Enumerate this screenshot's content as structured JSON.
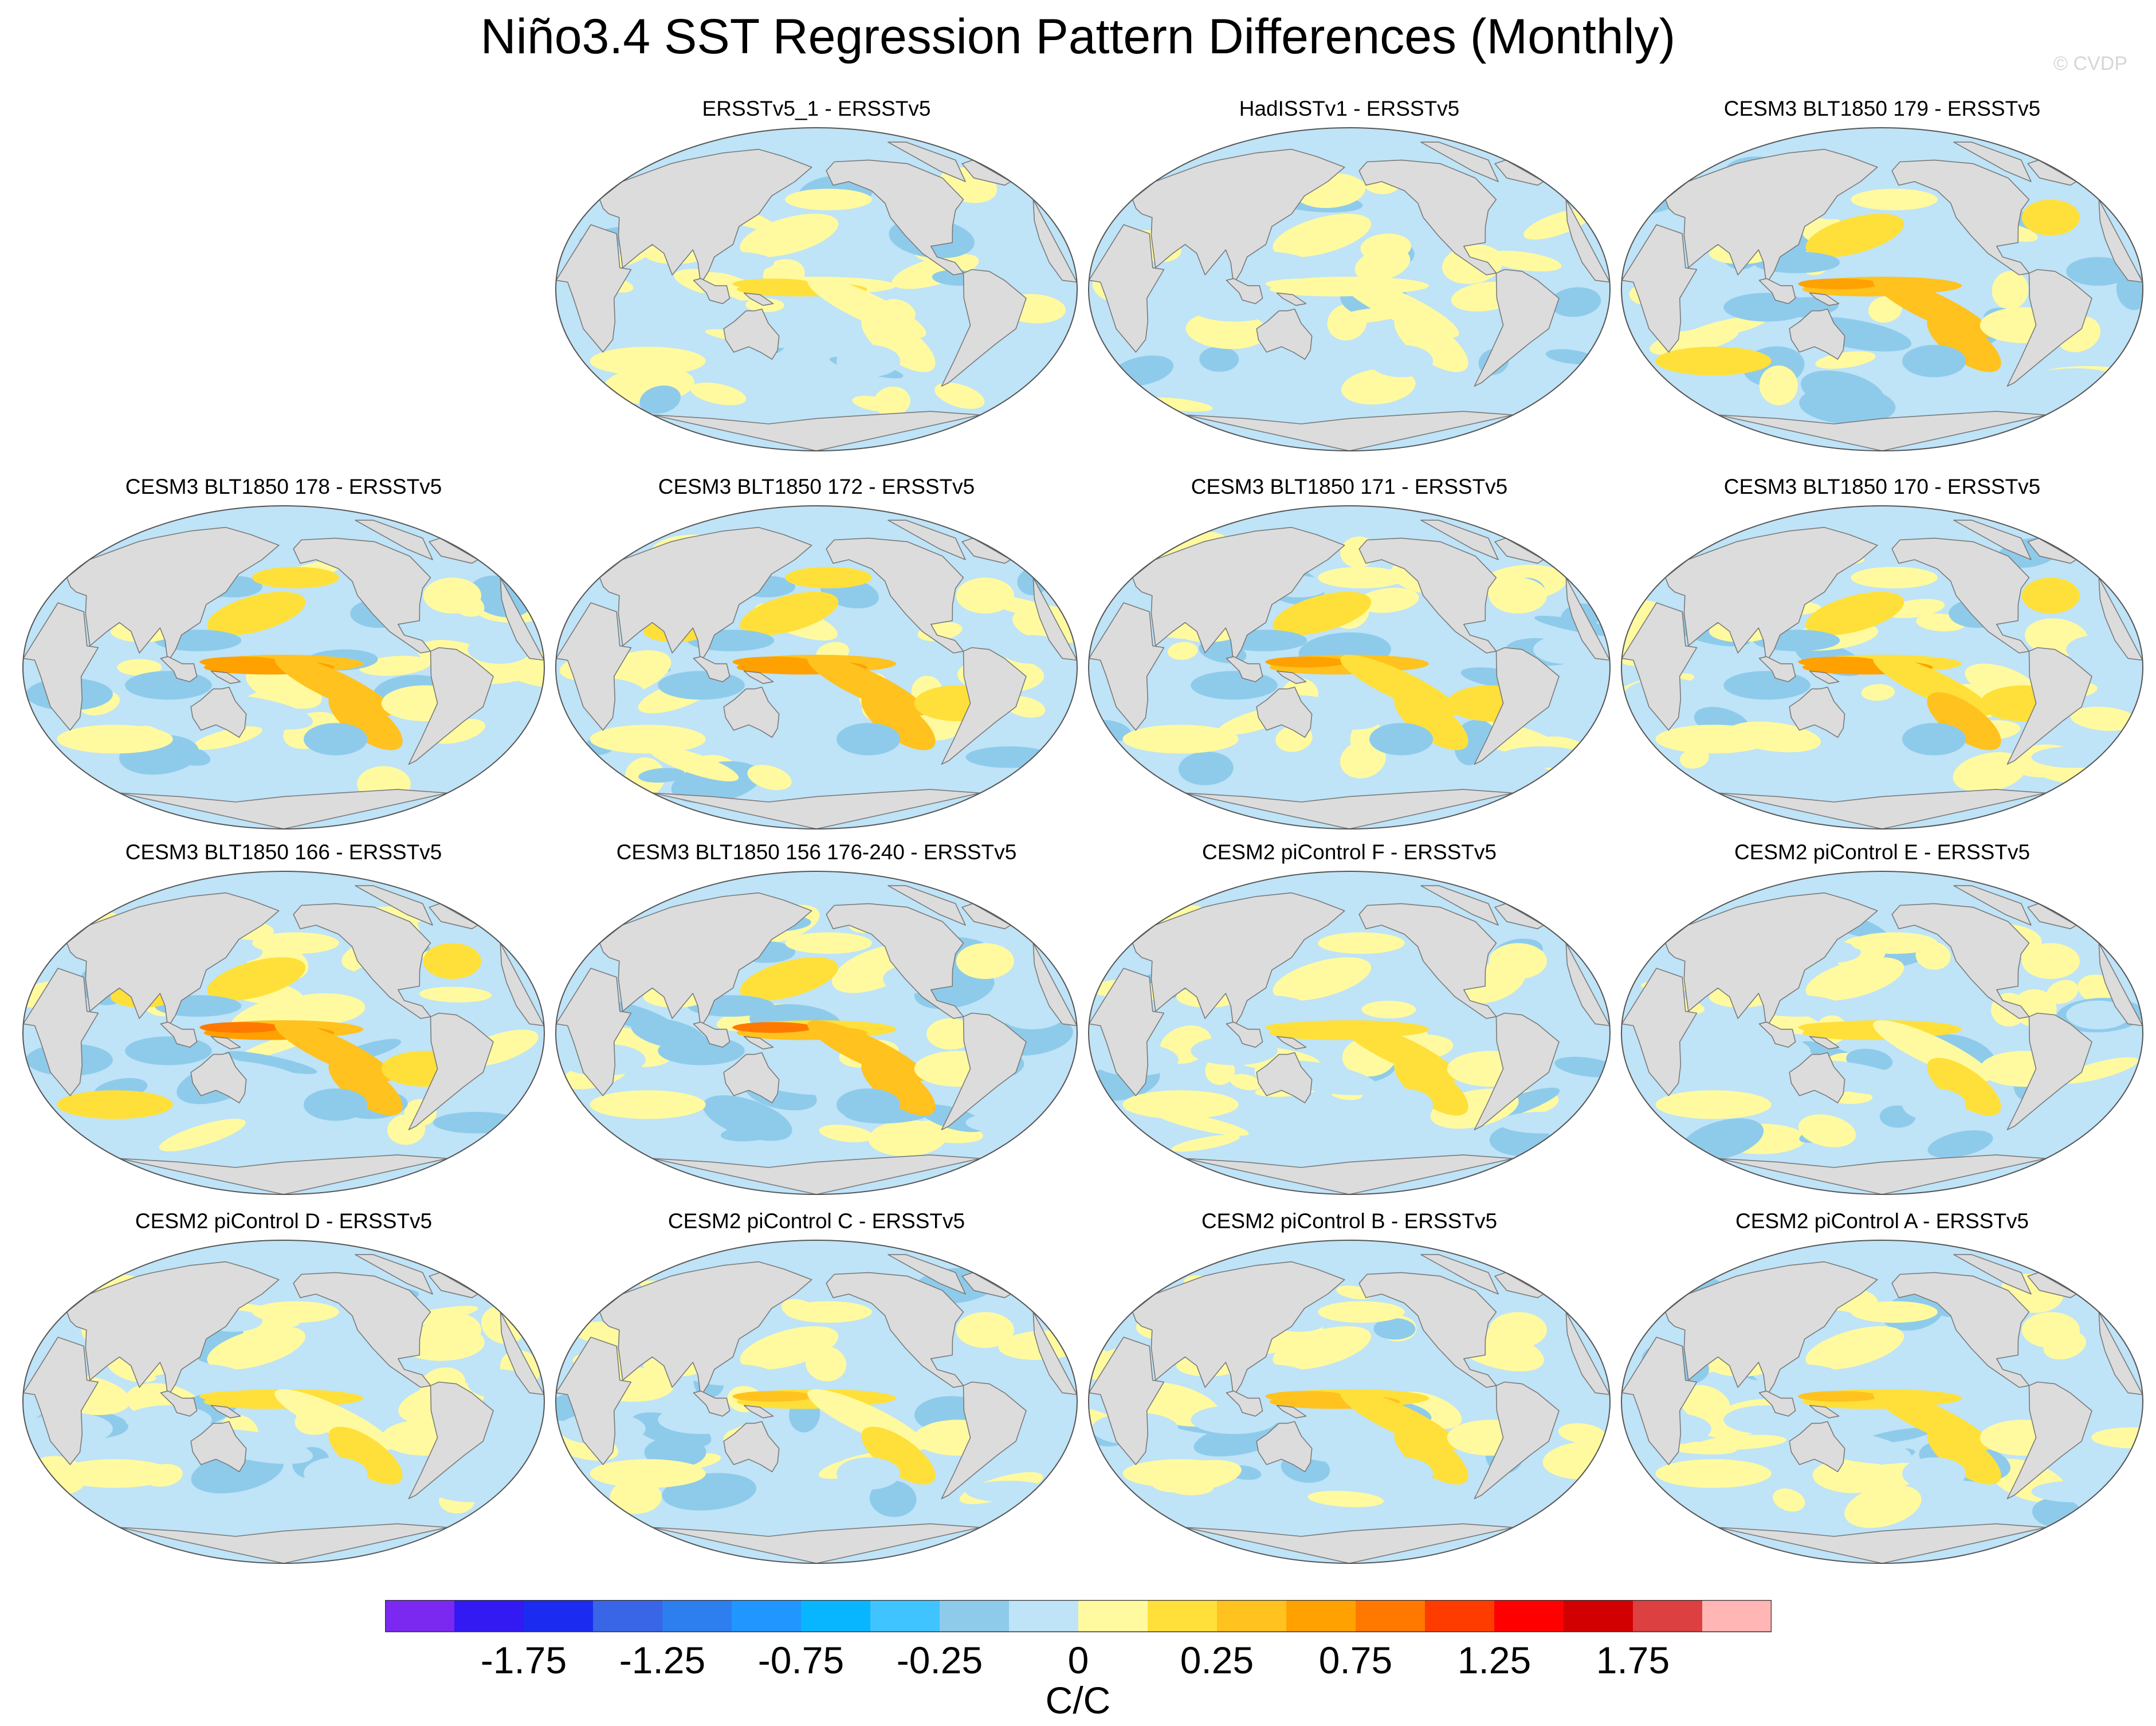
{
  "title": "Niño3.4 SST Regression Pattern Differences (Monthly)",
  "credit": "© CVDP",
  "colors": {
    "land": "#dcdcdc",
    "coast": "#7a7a7a",
    "colorbar": [
      "#7b28f0",
      "#3319f2",
      "#1b2cf0",
      "#3866e6",
      "#2d7ff0",
      "#2196ff",
      "#08b6ff",
      "#40c4ff",
      "#8ecbeb",
      "#bfe3f7",
      "#fffaa0",
      "#ffe03a",
      "#ffc21e",
      "#ffa100",
      "#ff7800",
      "#ff3c00",
      "#ff0000",
      "#d20000",
      "#dd4040",
      "#ffb6b4"
    ]
  },
  "colorbar": {
    "labels": [
      "-1.75",
      "-1.25",
      "-0.75",
      "-0.25",
      "0",
      "0.25",
      "0.75",
      "1.25",
      "1.75"
    ],
    "units": "C/C"
  },
  "panels": [
    {
      "label": "ERSSTv5_1 - ERSSTv5",
      "row": 0,
      "col": 1,
      "intensity": 0.3
    },
    {
      "label": "HadISSTv1 - ERSSTv5",
      "row": 0,
      "col": 2,
      "intensity": 0.25
    },
    {
      "label": "CESM3 BLT1850 179 - ERSSTv5",
      "row": 0,
      "col": 3,
      "intensity": 0.9
    },
    {
      "label": "CESM3 BLT1850 178 - ERSSTv5",
      "row": 1,
      "col": 0,
      "intensity": 0.95
    },
    {
      "label": "CESM3 BLT1850 172 - ERSSTv5",
      "row": 1,
      "col": 1,
      "intensity": 1.0
    },
    {
      "label": "CESM3 BLT1850 171 - ERSSTv5",
      "row": 1,
      "col": 2,
      "intensity": 0.95
    },
    {
      "label": "CESM3 BLT1850 170 - ERSSTv5",
      "row": 1,
      "col": 3,
      "intensity": 0.9
    },
    {
      "label": "CESM3 BLT1850 166 - ERSSTv5",
      "row": 2,
      "col": 0,
      "intensity": 0.95
    },
    {
      "label": "CESM3 BLT1850 156 176-240 - ERSSTv5",
      "row": 2,
      "col": 1,
      "intensity": 0.9
    },
    {
      "label": "CESM2 piControl F - ERSSTv5",
      "row": 2,
      "col": 2,
      "intensity": 0.55
    },
    {
      "label": "CESM2 piControl E - ERSSTv5",
      "row": 2,
      "col": 3,
      "intensity": 0.5
    },
    {
      "label": "CESM2 piControl D - ERSSTv5",
      "row": 3,
      "col": 0,
      "intensity": 0.5
    },
    {
      "label": "CESM2 piControl C - ERSSTv5",
      "row": 3,
      "col": 1,
      "intensity": 0.55
    },
    {
      "label": "CESM2 piControl B - ERSSTv5",
      "row": 3,
      "col": 2,
      "intensity": 0.55
    },
    {
      "label": "CESM2 piControl A - ERSSTv5",
      "row": 3,
      "col": 3,
      "intensity": 0.5
    }
  ]
}
